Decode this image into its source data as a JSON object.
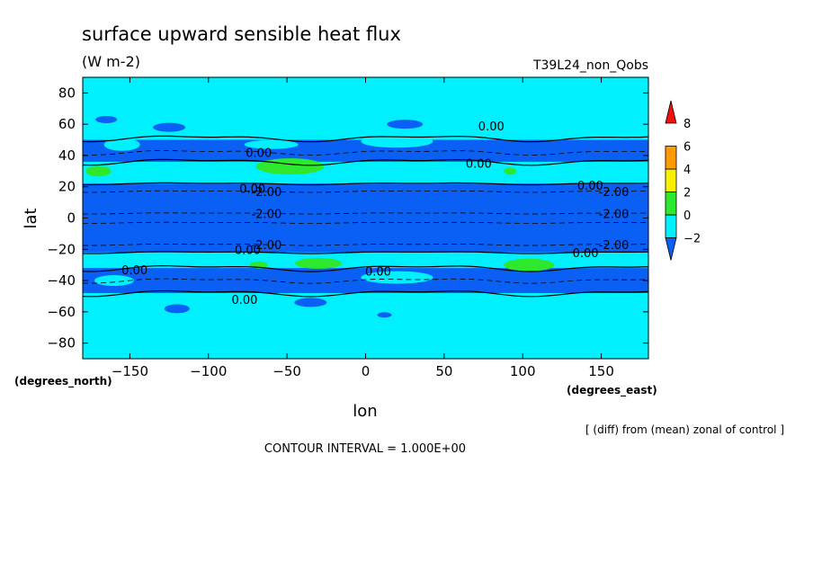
{
  "chart_data": {
    "type": "heatmap",
    "title": "surface upward sensible heat flux",
    "units": "(W m-2)",
    "run_label": "T39L24_non_Qobs",
    "xlabel": "lon",
    "ylabel": "lat",
    "x_unit_label": "(degrees_east)",
    "y_unit_label": "(degrees_north)",
    "xlim": [
      -180,
      180
    ],
    "ylim": [
      -90,
      90
    ],
    "x_ticks": [
      -150,
      -100,
      -50,
      0,
      50,
      100,
      150
    ],
    "y_ticks": [
      80,
      60,
      40,
      20,
      0,
      -20,
      -40,
      -60,
      -80
    ],
    "x_tick_labels": [
      "−150",
      "−100",
      "−50",
      "0",
      "50",
      "100",
      "150"
    ],
    "y_tick_labels": [
      "80",
      "60",
      "40",
      "20",
      "0",
      "−20",
      "−40",
      "−60",
      "−80"
    ],
    "colorbar": {
      "levels": [
        -2,
        0,
        2,
        4,
        6,
        8
      ],
      "level_labels": [
        "−2",
        "0",
        "2",
        "4",
        "6",
        "8"
      ],
      "colors": [
        "#0a5ff5",
        "#00f0ff",
        "#2ee82e",
        "#f8f000",
        "#ff9a00",
        "#f01010"
      ]
    },
    "contour_interval_text": "CONTOUR INTERVAL = 1.000E+00",
    "note": "[ (diff) from (mean) zonal of control ]",
    "contour_labels": [
      {
        "text": "0.00",
        "lon": -68,
        "lat": 42
      },
      {
        "text": "0.00",
        "lon": 80,
        "lat": 59
      },
      {
        "text": "0.00",
        "lon": 72,
        "lat": 35
      },
      {
        "text": "0.00",
        "lon": -72,
        "lat": 19
      },
      {
        "text": "0.00",
        "lon": 143,
        "lat": 21
      },
      {
        "text": "-2.00",
        "lon": -63,
        "lat": 17
      },
      {
        "text": "-2.00",
        "lon": 158,
        "lat": 17
      },
      {
        "text": "-2.00",
        "lon": -63,
        "lat": 3
      },
      {
        "text": "-2.00",
        "lon": 158,
        "lat": 3
      },
      {
        "text": "-2.00",
        "lon": -63,
        "lat": -17
      },
      {
        "text": "-2.00",
        "lon": 158,
        "lat": -17
      },
      {
        "text": "0.00",
        "lon": -75,
        "lat": -20
      },
      {
        "text": "0.00",
        "lon": 140,
        "lat": -22
      },
      {
        "text": "0.00",
        "lon": -147,
        "lat": -33
      },
      {
        "text": "0.00",
        "lon": 8,
        "lat": -34
      },
      {
        "text": "0.00",
        "lon": -77,
        "lat": -52
      }
    ]
  }
}
